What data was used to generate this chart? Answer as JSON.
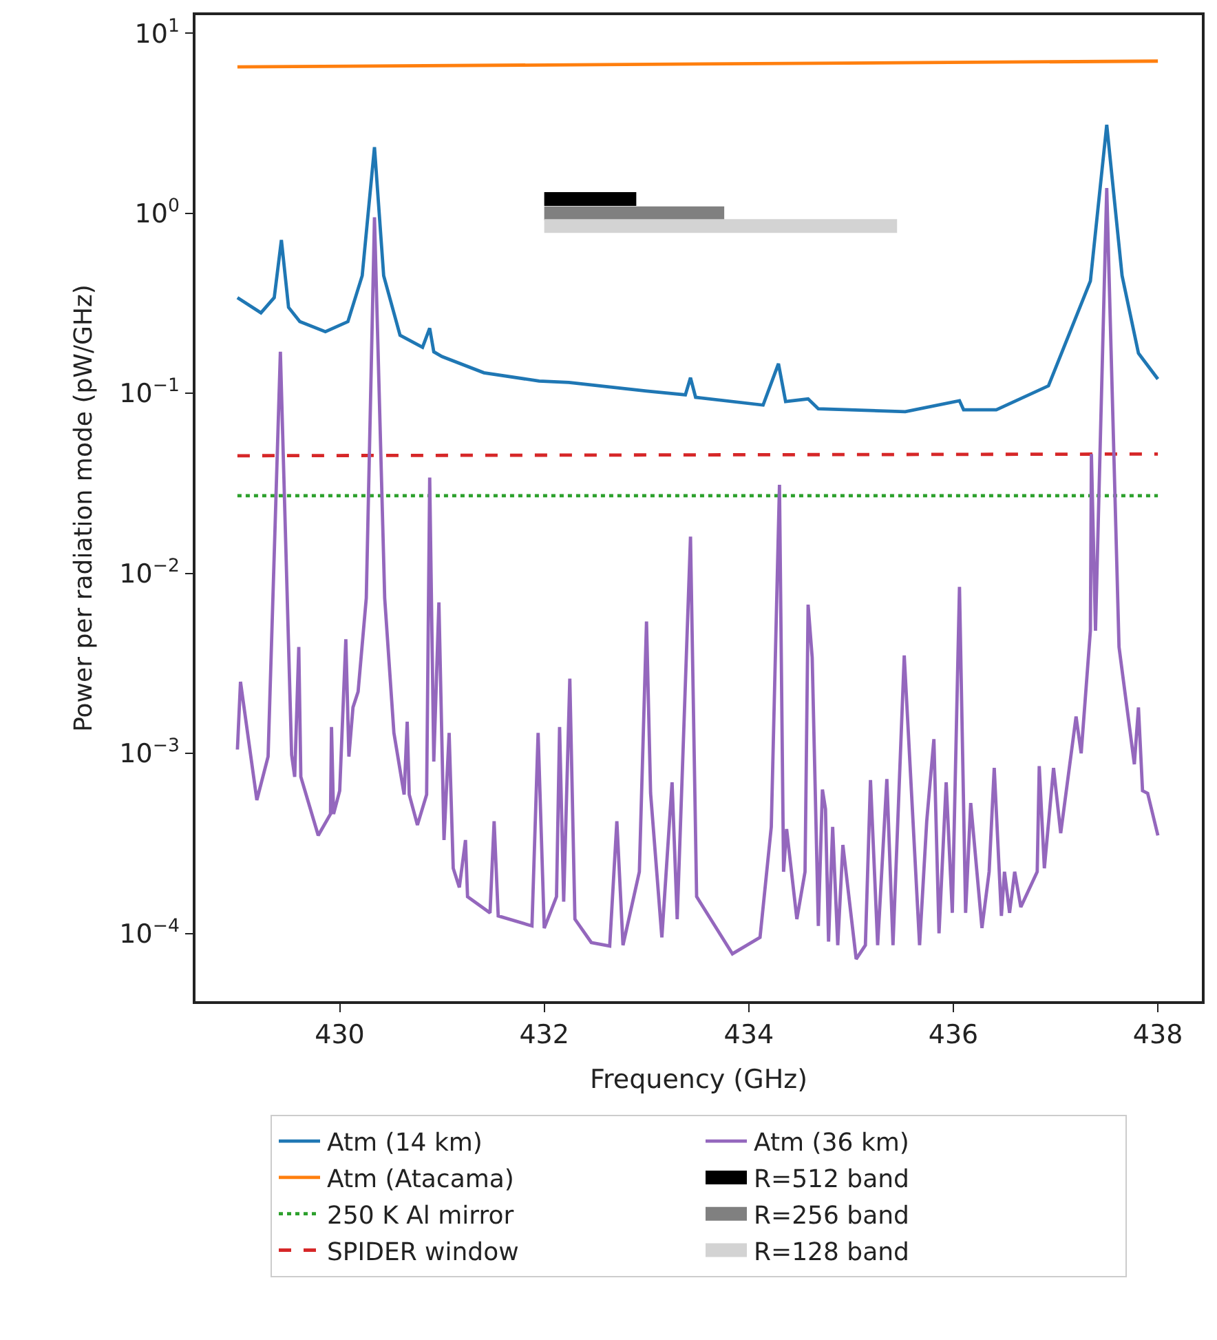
{
  "chart_data": {
    "type": "line",
    "xlabel": "Frequency (GHz)",
    "ylabel": "Power per radiation mode (pW/GHz)",
    "log": "y",
    "legend": "bottom",
    "marker": "none",
    "xlim": [
      428.59,
      438.43
    ],
    "xticks": [
      430,
      432,
      434,
      436,
      438
    ],
    "ylim": [
      4.2e-05,
      12.6
    ],
    "yticks": [
      {
        "value": 0.0001,
        "label": "10$^{−4}$"
      },
      {
        "value": 0.001,
        "label": "10$^{−3}$"
      },
      {
        "value": 0.01,
        "label": "10$^{−2}$"
      },
      {
        "value": 0.1,
        "label": "10$^{−1}$"
      },
      {
        "value": 1,
        "label": "10$^{0}$"
      },
      {
        "value": 10,
        "label": "10$^{1}$"
      }
    ],
    "series": [
      {
        "name": "Atm (14 km)",
        "color": "#1f77b4",
        "line_style": "solid",
        "x": [
          429.0,
          429.23,
          429.36,
          429.43,
          429.5,
          429.61,
          429.86,
          430.08,
          430.22,
          430.34,
          430.43,
          430.59,
          430.81,
          430.88,
          430.92,
          431.0,
          431.41,
          431.95,
          432.24,
          433.0,
          433.38,
          433.43,
          433.48,
          434.14,
          434.29,
          434.36,
          434.58,
          434.68,
          435.53,
          436.06,
          436.1,
          436.42,
          436.93,
          437.34,
          437.5,
          437.65,
          437.81,
          438.0
        ],
        "values": [
          0.34,
          0.28,
          0.34,
          0.71,
          0.3,
          0.25,
          0.22,
          0.25,
          0.45,
          2.33,
          0.45,
          0.21,
          0.18,
          0.23,
          0.17,
          0.16,
          0.13,
          0.117,
          0.115,
          0.103,
          0.098,
          0.122,
          0.095,
          0.086,
          0.146,
          0.09,
          0.093,
          0.082,
          0.079,
          0.091,
          0.081,
          0.081,
          0.11,
          0.42,
          3.1,
          0.45,
          0.167,
          0.12
        ]
      },
      {
        "name": "Atm (Atacama)",
        "color": "#ff7f0e",
        "line_style": "solid",
        "x": [
          429.0,
          438.0
        ],
        "values": [
          6.5,
          7.0
        ]
      },
      {
        "name": "250 K Al mirror",
        "color": "#2ca02c",
        "line_style": "dotted",
        "x": [
          429.0,
          438.0
        ],
        "values": [
          0.027,
          0.027
        ]
      },
      {
        "name": "SPIDER window",
        "color": "#d62728",
        "line_style": "dashed",
        "x": [
          429.0,
          438.0
        ],
        "values": [
          0.045,
          0.046
        ]
      },
      {
        "name": "Atm (36 km)",
        "color": "#9467bd",
        "line_style": "solid",
        "x": [
          429.0,
          429.03,
          429.19,
          429.3,
          429.42,
          429.53,
          429.56,
          429.6,
          429.62,
          429.79,
          429.91,
          429.92,
          429.94,
          430.0,
          430.06,
          430.09,
          430.13,
          430.18,
          430.26,
          430.34,
          430.44,
          430.53,
          430.63,
          430.66,
          430.68,
          430.76,
          430.85,
          430.88,
          430.92,
          430.97,
          431.02,
          431.07,
          431.11,
          431.17,
          431.23,
          431.25,
          431.47,
          431.51,
          431.55,
          431.88,
          431.94,
          432.0,
          432.12,
          432.15,
          432.19,
          432.25,
          432.3,
          432.46,
          432.64,
          432.71,
          432.77,
          432.93,
          433.0,
          433.04,
          433.15,
          433.25,
          433.3,
          433.43,
          433.49,
          433.84,
          434.11,
          434.22,
          434.3,
          434.34,
          434.37,
          434.47,
          434.55,
          434.58,
          434.62,
          434.68,
          434.72,
          434.75,
          434.78,
          434.82,
          434.87,
          434.92,
          435.05,
          435.14,
          435.19,
          435.26,
          435.35,
          435.41,
          435.52,
          435.67,
          435.74,
          435.81,
          435.86,
          435.93,
          435.99,
          436.06,
          436.12,
          436.17,
          436.28,
          436.35,
          436.4,
          436.47,
          436.5,
          436.55,
          436.6,
          436.66,
          436.82,
          436.84,
          436.89,
          436.98,
          437.05,
          437.2,
          437.25,
          437.34,
          437.35,
          437.39,
          437.5,
          437.62,
          437.77,
          437.81,
          437.85,
          437.9,
          438.0
        ],
        "values": [
          0.00105,
          0.0025,
          0.00055,
          0.00096,
          0.17,
          0.00098,
          0.00074,
          0.0039,
          0.00074,
          0.00035,
          0.00046,
          0.0014,
          0.00046,
          0.00062,
          0.0043,
          0.00096,
          0.0018,
          0.0022,
          0.0073,
          0.95,
          0.0073,
          0.0013,
          0.00059,
          0.0015,
          0.00059,
          0.0004,
          0.00059,
          0.034,
          0.0009,
          0.0069,
          0.00033,
          0.0013,
          0.00023,
          0.00018,
          0.00033,
          0.00016,
          0.00013,
          0.00042,
          0.000125,
          0.00011,
          0.0013,
          0.000107,
          0.00016,
          0.0014,
          0.00015,
          0.0026,
          0.00012,
          8.9e-05,
          8.5e-05,
          0.00042,
          8.6e-05,
          0.00022,
          0.0054,
          0.0006,
          9.5e-05,
          0.00069,
          0.00012,
          0.016,
          0.00016,
          7.7e-05,
          9.5e-05,
          0.00039,
          0.031,
          0.00022,
          0.00038,
          0.00012,
          0.00022,
          0.0067,
          0.0034,
          0.00011,
          0.00063,
          0.00049,
          9e-05,
          0.00039,
          8.6e-05,
          0.00031,
          7.2e-05,
          8.6e-05,
          0.00071,
          8.6e-05,
          0.00072,
          8.6e-05,
          0.0035,
          8.6e-05,
          0.00042,
          0.0012,
          0.0001,
          0.00069,
          0.00013,
          0.0084,
          0.00013,
          0.00053,
          0.000107,
          0.00022,
          0.00083,
          0.000125,
          0.00022,
          0.00013,
          0.00022,
          0.00014,
          0.00022,
          0.00085,
          0.00023,
          0.00083,
          0.00036,
          0.0016,
          0.001,
          0.0048,
          0.046,
          0.0048,
          1.38,
          0.0039,
          0.00087,
          0.0018,
          0.00062,
          0.0006,
          0.00035
        ]
      },
      {
        "name": "R=512 band",
        "color": "#000000",
        "line_style": "solid",
        "x": [
          432.0,
          432.9
        ],
        "values": [
          1.2,
          1.2
        ]
      },
      {
        "name": "R=256 band",
        "color": "#808080",
        "line_style": "solid",
        "x": [
          432.0,
          433.76
        ],
        "values": [
          1.0,
          1.0
        ]
      },
      {
        "name": "R=128 band",
        "color": "#d3d3d3",
        "line_style": "solid",
        "x": [
          432.0,
          435.45
        ],
        "values": [
          0.85,
          0.85
        ]
      }
    ]
  }
}
